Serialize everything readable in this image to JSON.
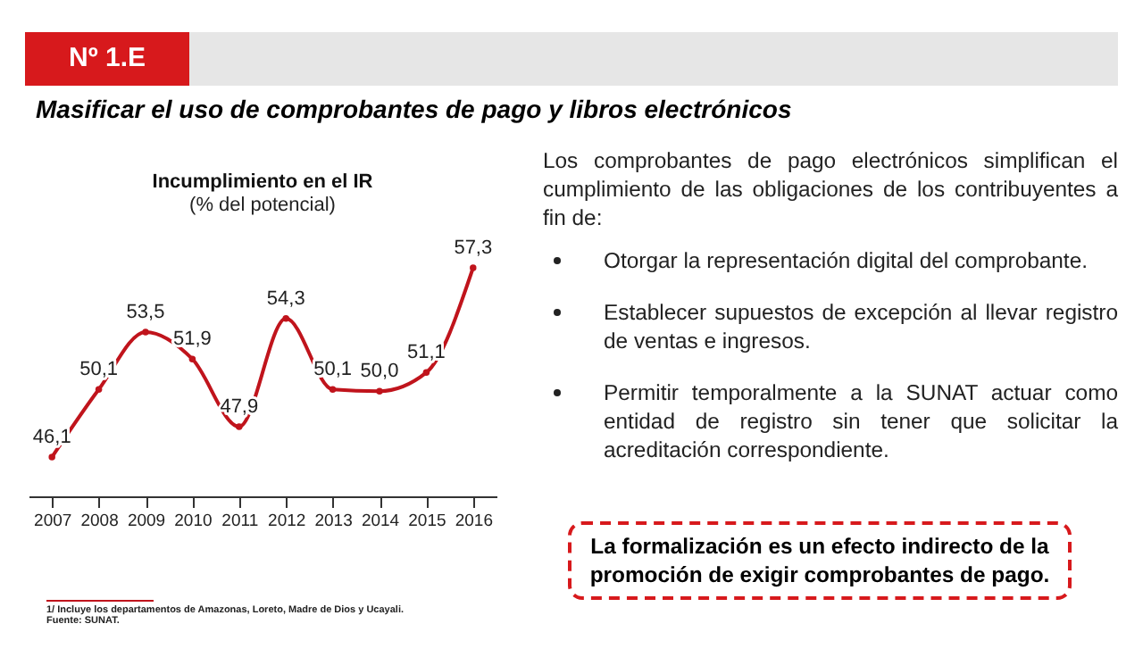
{
  "chart_data": {
    "type": "line",
    "title": "Incumplimiento en el IR",
    "subtitle": "(% del potencial)",
    "categories": [
      "2007",
      "2008",
      "2009",
      "2010",
      "2011",
      "2012",
      "2013",
      "2014",
      "2015",
      "2016"
    ],
    "series": [
      {
        "color": "#c0141c",
        "values": [
          46.1,
          50.1,
          53.5,
          51.9,
          47.9,
          54.3,
          50.1,
          50.0,
          51.1,
          57.3
        ],
        "value_labels": [
          "46,1",
          "50,1",
          "53,5",
          "51,9",
          "47,9",
          "54,3",
          "50,1",
          "50,0",
          "51,1",
          "57,3"
        ]
      }
    ],
    "marker": "circle",
    "grid": false,
    "annotations": [
      "Nº 1.E",
      "Masificar el uso de comprobantes de pago y libros electrónicos",
      "Los comprobantes de pago electrónicos simplifican el cumplimiento de las obligaciones de los contribuyentes a fin de:",
      "Otorgar la representación digital del comprobante.",
      "Establecer supuestos de excepción al llevar registro de ventas e ingresos.",
      "Permitir temporalmente a la SUNAT actuar como entidad de registro sin tener que solicitar la acreditación correspondiente.",
      "La formalización es un efecto indirecto de la promoción de exigir comprobantes de pago.",
      "1/ Incluye los departamentos de Amazonas, Loreto, Madre de Dios y Ucayali.",
      "Fuente: SUNAT."
    ]
  }
}
